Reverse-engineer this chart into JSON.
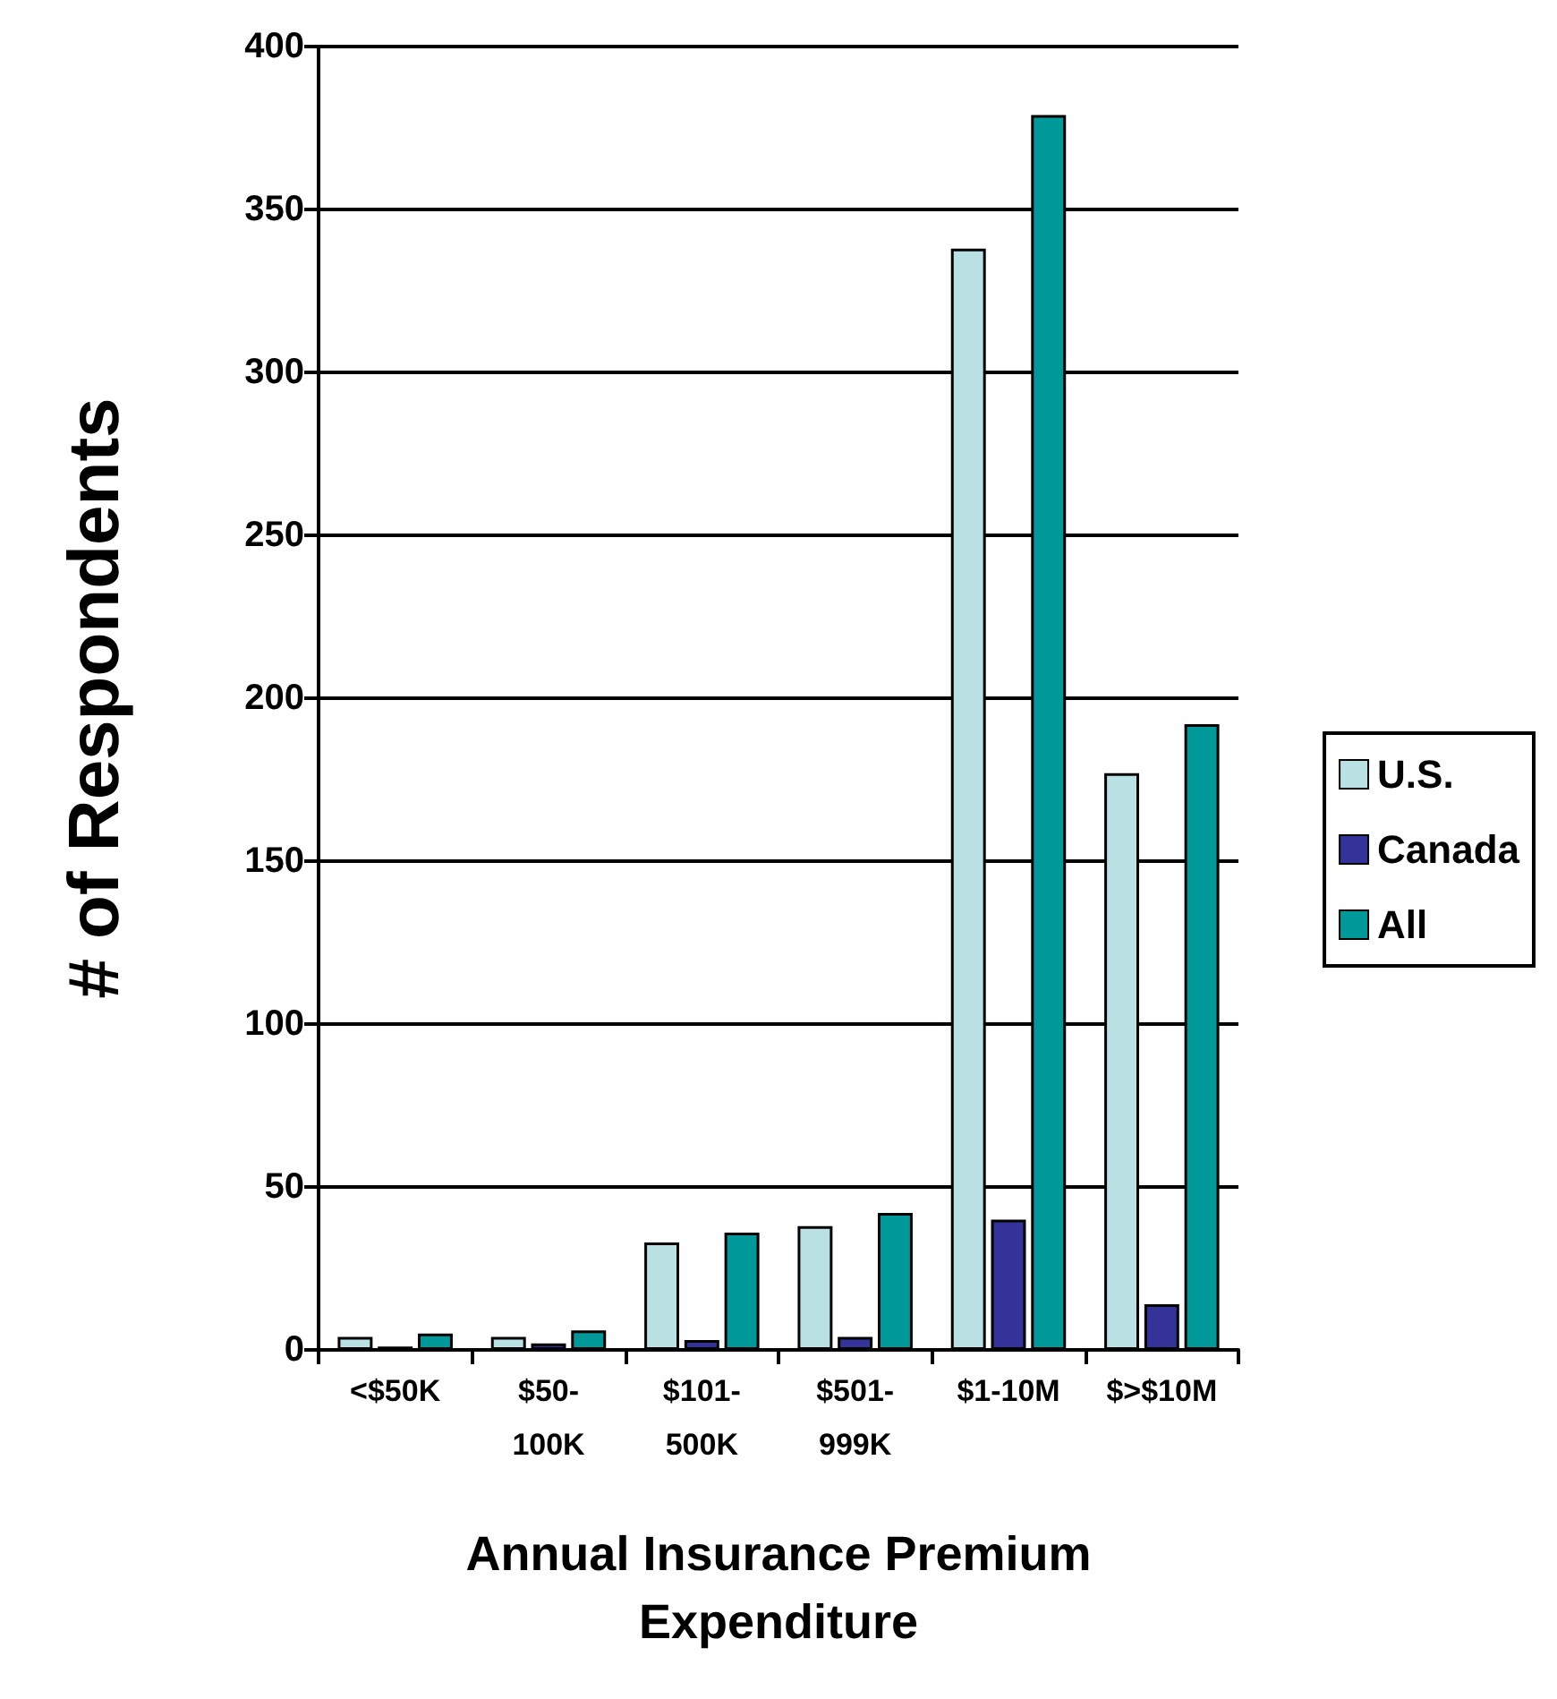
{
  "chart_data": {
    "type": "bar",
    "xlabel": "Annual Insurance Premium\nExpenditure",
    "ylabel": "# of Respondents",
    "categories": [
      "<$50K",
      "$50-\n100K",
      "$101-\n500K",
      "$501-\n999K",
      "$1-10M",
      "$>$10M"
    ],
    "series": [
      {
        "name": "U.S.",
        "color": "#b9e0e3",
        "values": [
          4,
          4,
          33,
          38,
          338,
          177
        ]
      },
      {
        "name": "Canada",
        "color": "#333399",
        "values": [
          1,
          2,
          3,
          4,
          40,
          14
        ]
      },
      {
        "name": "All",
        "color": "#009999",
        "values": [
          5,
          6,
          36,
          42,
          379,
          192
        ]
      }
    ],
    "ylim": [
      0,
      400
    ],
    "yticks": [
      0,
      50,
      100,
      150,
      200,
      250,
      300,
      350,
      400
    ],
    "grid": "y",
    "legend": "right"
  }
}
